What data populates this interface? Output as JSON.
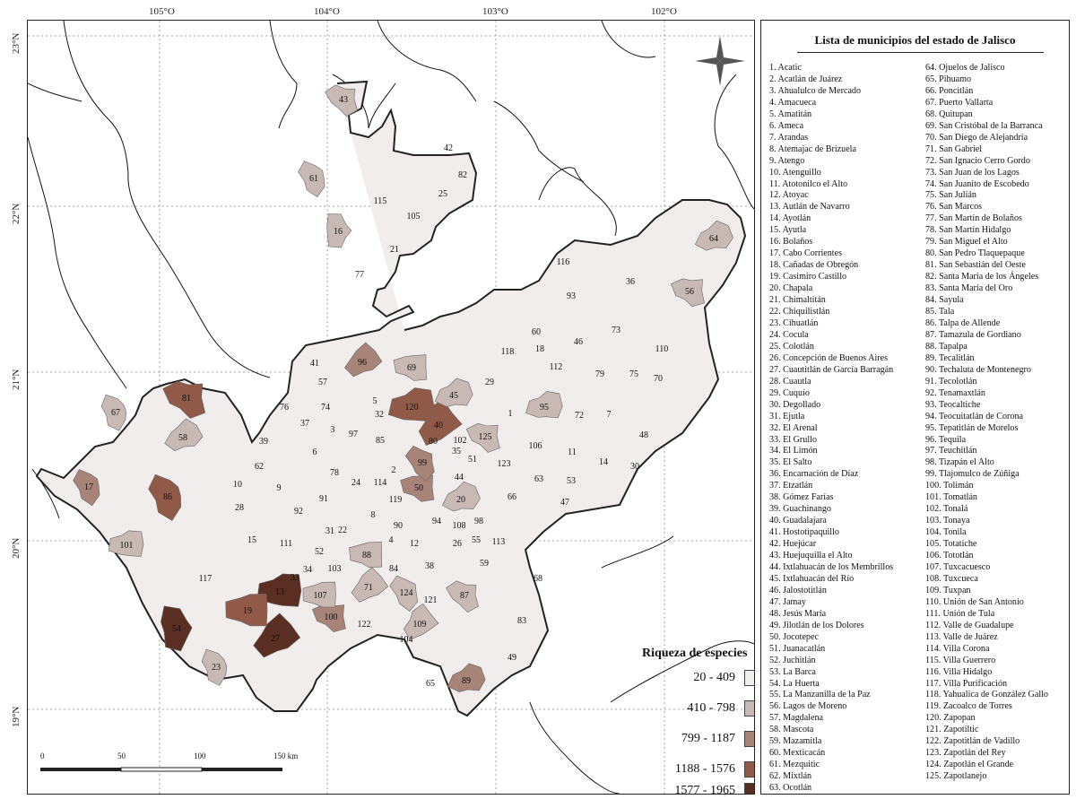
{
  "map": {
    "lon_labels": [
      "105°O",
      "104°O",
      "103°O",
      "102°O"
    ],
    "lat_labels": [
      "23°N",
      "22°N",
      "21°N",
      "20°N",
      "19°N"
    ],
    "municipio_labels": [
      "1",
      "2",
      "3",
      "4",
      "5",
      "6",
      "7",
      "8",
      "9",
      "10",
      "11",
      "12",
      "13",
      "14",
      "15",
      "16",
      "17",
      "18",
      "19",
      "20",
      "21",
      "22",
      "23",
      "24",
      "25",
      "26",
      "27",
      "28",
      "29",
      "30",
      "31",
      "32",
      "33",
      "34",
      "35",
      "36",
      "37",
      "38",
      "39",
      "40",
      "41",
      "42",
      "43",
      "44",
      "45",
      "46",
      "47",
      "48",
      "49",
      "50",
      "51",
      "52",
      "53",
      "54",
      "55",
      "56",
      "57",
      "58",
      "59",
      "60",
      "61",
      "62",
      "63",
      "64",
      "65",
      "66",
      "67",
      "68",
      "69",
      "70",
      "71",
      "72",
      "73",
      "74",
      "75",
      "76",
      "77",
      "78",
      "79",
      "80",
      "81",
      "82",
      "83",
      "84",
      "85",
      "86",
      "87",
      "88",
      "89",
      "90",
      "91",
      "92",
      "93",
      "94",
      "95",
      "96",
      "97",
      "98",
      "99",
      "100",
      "101",
      "102",
      "103",
      "104",
      "105",
      "106",
      "107",
      "108",
      "109",
      "110",
      "111",
      "112",
      "113",
      "114",
      "115",
      "116",
      "117",
      "118",
      "119",
      "120",
      "121",
      "122",
      "123",
      "124",
      "125"
    ],
    "richness_class_by_municipio": {
      "13": 4,
      "27": 4,
      "54": 4,
      "19": 3,
      "40": 3,
      "81": 3,
      "86": 3,
      "120": 3,
      "17": 2,
      "50": 2,
      "89": 2,
      "96": 2,
      "99": 2,
      "100": 2,
      "16": 1,
      "20": 1,
      "23": 1,
      "43": 1,
      "45": 1,
      "56": 1,
      "58": 1,
      "61": 1,
      "64": 1,
      "67": 1,
      "69": 1,
      "71": 1,
      "87": 1,
      "88": 1,
      "95": 1,
      "101": 1,
      "107": 1,
      "109": 1,
      "124": 1,
      "125": 1
    }
  },
  "list": {
    "title": "Lista de municipios del estado de Jalisco",
    "col1": [
      "1. Acatic",
      "2. Acatlán de Juárez",
      "3. Ahualulco de Mercado",
      "4. Amacueca",
      "5. Amatitán",
      "6. Ameca",
      "7. Arandas",
      "8. Atemajac de Brizuela",
      "9. Atengo",
      "10. Atenguillo",
      "11. Atotonilco el Alto",
      "12. Atoyac",
      "13. Autlán de Navarro",
      "14. Ayotlán",
      "15. Ayutla",
      "16. Bolaños",
      "17. Cabo Corrientes",
      "18. Cañadas de Obregón",
      "19. Casimiro Castillo",
      "20. Chapala",
      "21. Chimaltitán",
      "22. Chiquilistlán",
      "23. Cihuatlán",
      "24. Cocula",
      "25. Colotlán",
      "26. Concepción de Buenos Aires",
      "27. Cuautitlán de García Barragán",
      "28. Cuautla",
      "29. Cuquío",
      "30. Degollado",
      "31. Ejutla",
      "32. El Arenal",
      "33. El Grullo",
      "34. El Limón",
      "35. El Salto",
      "36. Encarnación de Díaz",
      "37. Etzatlán",
      "38. Gómez Farías",
      "39. Guachinango",
      "40. Guadalajara",
      "41. Hostotipaquillo",
      "42. Huejúcar",
      "43. Huejuquilla el Alto",
      "44. Ixtlahuacán de los Membrillos",
      "45. Ixtlahuacán del Río",
      "46. Jalostotitlán",
      "47. Jamay",
      "48. Jesús María",
      "49. Jilotlán de los Dolores",
      "50. Jocotepec",
      "51. Juanacatlán",
      "52. Juchitlán",
      "53. La Barca",
      "54. La Huerta",
      "55. La Manzanilla de la Paz",
      "56. Lagos de Moreno",
      "57. Magdalena",
      "58. Mascota",
      "59. Mazamitla",
      "60. Mexticacán",
      "61. Mezquitic",
      "62. Mixtlán",
      "63. Ocotlán"
    ],
    "col2": [
      "64. Ojuelos de Jalisco",
      "65. Pihuamo",
      "66. Poncitlán",
      "67. Puerto Vallarta",
      "68. Quitupan",
      "69. San Cristóbal de la Barranca",
      "70. San Diego de Alejandría",
      "71. San Gabriel",
      "72. San Ignacio Cerro Gordo",
      "73. San Juan de los Lagos",
      "74. San Juanito de Escobedo",
      "75. San Julián",
      "76. San Marcos",
      "77. San Martín de Bolaños",
      "78. San Martín Hidalgo",
      "79. San Miguel el Alto",
      "80. San Pedro Tlaquepaque",
      "81. San Sebastián del Oeste",
      "82. Santa María de los Ángeles",
      "83. Santa María del Oro",
      "84. Sayula",
      "85. Tala",
      "86. Talpa de Allende",
      "87. Tamazula de Gordiano",
      "88. Tapalpa",
      "89. Tecalitlán",
      "90. Techaluta de Montenegro",
      "91. Tecolotlán",
      "92. Tenamaxtlán",
      "93. Teocaltiche",
      "94. Teocuitatlán de Corona",
      "95. Tepatitlán de Morelos",
      "96. Tequila",
      "97. Teuchitlán",
      "98. Tizapán el Alto",
      "99. Tlajomulco de Zúñiga",
      "100. Tolimán",
      "101. Tomatlán",
      "102. Tonalá",
      "103. Tonaya",
      "104. Tonila",
      "105. Totatiche",
      "106. Tototlán",
      "107. Tuxcacuesco",
      "108. Tuxcueca",
      "109. Tuxpan",
      "110. Unión de San Antonio",
      "111. Unión de Tula",
      "112. Valle de Guadalupe",
      "113. Valle de Juárez",
      "114. Villa Corona",
      "115. Villa Guerrero",
      "116. Villa Hidalgo",
      "117. Villa Purificación",
      "118. Yahualica de González Gallo",
      "119. Zacoalco de Torres",
      "120. Zapopan",
      "121. Zapotiltic",
      "122. Zapotitlán de Vadillo",
      "123. Zapotlán del Rey",
      "124. Zapotlán el Grande",
      "125. Zapotlanejo"
    ]
  },
  "legend": {
    "title": "Riqueza de especies",
    "classes": [
      {
        "label": "20 - 409",
        "color": "#f2eded"
      },
      {
        "label": "410 - 798",
        "color": "#c9b9b5"
      },
      {
        "label": "799 - 1187",
        "color": "#a88378"
      },
      {
        "label": "1188 - 1576",
        "color": "#915a48"
      },
      {
        "label": "1577 - 1965",
        "color": "#5a2e22"
      }
    ]
  },
  "scalebar": {
    "ticks": [
      "0",
      "50",
      "100",
      "150 km"
    ]
  },
  "north_arrow": {
    "icon": "compass-star-icon"
  }
}
